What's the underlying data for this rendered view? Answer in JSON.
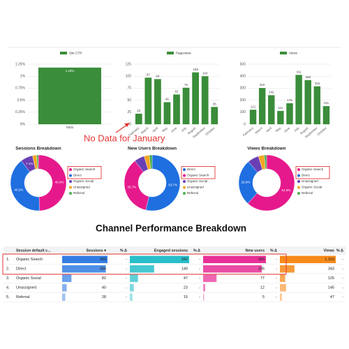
{
  "chart_data": [
    {
      "type": "bar",
      "legend": "Site CTR",
      "color": "#3a8d3a",
      "categories": [
        "WEB"
      ],
      "values": [
        1.18
      ],
      "value_labels": [
        "1.18%"
      ],
      "ylim": [
        0,
        1.25
      ],
      "yticks": [
        {
          "value": 0,
          "label": "0%"
        },
        {
          "value": 0.25,
          "label": "0.25%"
        },
        {
          "value": 0.5,
          "label": "0.5%"
        },
        {
          "value": 0.75,
          "label": "0.75%"
        },
        {
          "value": 1,
          "label": "1%"
        },
        {
          "value": 1.25,
          "label": "1.25%"
        }
      ],
      "grid": true
    },
    {
      "type": "bar",
      "legend": "Pageviews",
      "color": "#3a8d3a",
      "categories": [
        "February",
        "March",
        "April",
        "May",
        "June",
        "July",
        "August",
        "September",
        "October"
      ],
      "values": [
        22,
        97,
        94,
        46,
        62,
        76,
        108,
        100,
        36
      ],
      "ylim": [
        0,
        125
      ],
      "yticks": [
        0,
        25,
        50,
        75,
        100,
        125
      ],
      "grid": true
    },
    {
      "type": "bar",
      "legend": "Views",
      "color": "#3a8d3a",
      "categories": [
        "February",
        "March",
        "April",
        "May",
        "June",
        "July",
        "August",
        "September",
        "October"
      ],
      "values": [
        121,
        302,
        242,
        111,
        175,
        411,
        368,
        316,
        151
      ],
      "ylim": [
        0,
        500
      ],
      "yticks": [
        0,
        100,
        200,
        300,
        400,
        500
      ],
      "grid": true
    },
    {
      "type": "pie",
      "title": "Sessions Breakdown",
      "categories": [
        "Organic Search",
        "Direct",
        "Organic Social",
        "Unassigned",
        "Referral"
      ],
      "colors": [
        "#e6198c",
        "#1f6fe0",
        "#6a3fb5",
        "#f5a623",
        "#4caf50"
      ],
      "values": [
        49.3,
        40.2,
        7.1,
        2.4,
        1.0
      ],
      "value_labels": [
        "49.3%",
        "40.2%",
        "7.1%",
        null,
        null
      ]
    },
    {
      "type": "pie",
      "title": "New Users Breakdown",
      "categories": [
        "Direct",
        "Organic Search",
        "Organic Social",
        "Unassigned",
        "Referral"
      ],
      "colors": [
        "#1f6fe0",
        "#e6198c",
        "#6a3fb5",
        "#f5a623",
        "#4caf50"
      ],
      "values": [
        53.7,
        35.7,
        5.9,
        3.0,
        1.7
      ],
      "value_labels": [
        "53.7%",
        "35.7%",
        null,
        null,
        null
      ]
    },
    {
      "type": "pie",
      "title": "Views Breakdown",
      "categories": [
        "Organic Search",
        "Direct",
        "Unassigned",
        "Organic Social",
        "Referral"
      ],
      "colors": [
        "#e6198c",
        "#1f6fe0",
        "#6a3fb5",
        "#f5a623",
        "#4caf50"
      ],
      "values": [
        61.8,
        26.9,
        6.5,
        3.4,
        1.4
      ],
      "value_labels": [
        "61.8%",
        "26.9%",
        null,
        null,
        null
      ]
    }
  ],
  "annotation": "No Data for January",
  "section_title": "Channel Performance Breakdown",
  "table": {
    "columns": [
      "",
      "Session default c...",
      "Sessions ▾",
      "% Δ",
      "Engaged sessions",
      "% Δ",
      "New users",
      "% Δ",
      "Views",
      "% Δ"
    ],
    "bar_colors": [
      "#1e6fe0",
      "#12b7c4",
      "#e6198c",
      "#f57c00"
    ],
    "rows": [
      [
        "1.",
        "Organic Search",
        399,
        "-",
        342,
        "-",
        360,
        "-",
        {
          "value": 1316,
          "label": "1,316"
        },
        "-"
      ],
      [
        "2.",
        "Direct",
        384,
        "-",
        140,
        "-",
        336,
        "-",
        343,
        "-"
      ],
      [
        "3.",
        "Organic Social",
        82,
        "-",
        47,
        "-",
        77,
        "-",
        125,
        "-"
      ],
      [
        "4.",
        "Unassigned",
        40,
        "-",
        23,
        "-",
        12,
        "-",
        145,
        "-"
      ],
      [
        "5.",
        "Referral",
        28,
        "-",
        15,
        "-",
        5,
        "-",
        47,
        "-"
      ]
    ]
  }
}
